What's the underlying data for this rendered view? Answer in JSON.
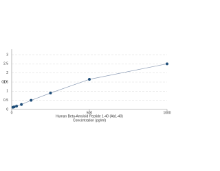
{
  "chart_data": {
    "type": "scatter",
    "x_label": "Human Beta-Amyloid Peptide 1-40 (Ab1-40)",
    "x_label_2": "Concentration (pg/ml)",
    "y_label": "OD",
    "series": [
      {
        "color": "#1f4e79",
        "line_color": "#8c9cb5",
        "x": [
          7.8,
          15.6,
          31.25,
          62.5,
          125,
          250,
          500,
          1000
        ],
        "values": [
          0.12,
          0.14,
          0.18,
          0.27,
          0.5,
          0.9,
          1.65,
          2.5
        ]
      }
    ],
    "xlim": [
      0,
      1000
    ],
    "xticks": [
      0,
      500,
      1000
    ],
    "ylim": [
      0,
      3.3
    ],
    "yticks": [
      0,
      0.5,
      1,
      1.5,
      2,
      2.5,
      3
    ],
    "grid": true
  }
}
